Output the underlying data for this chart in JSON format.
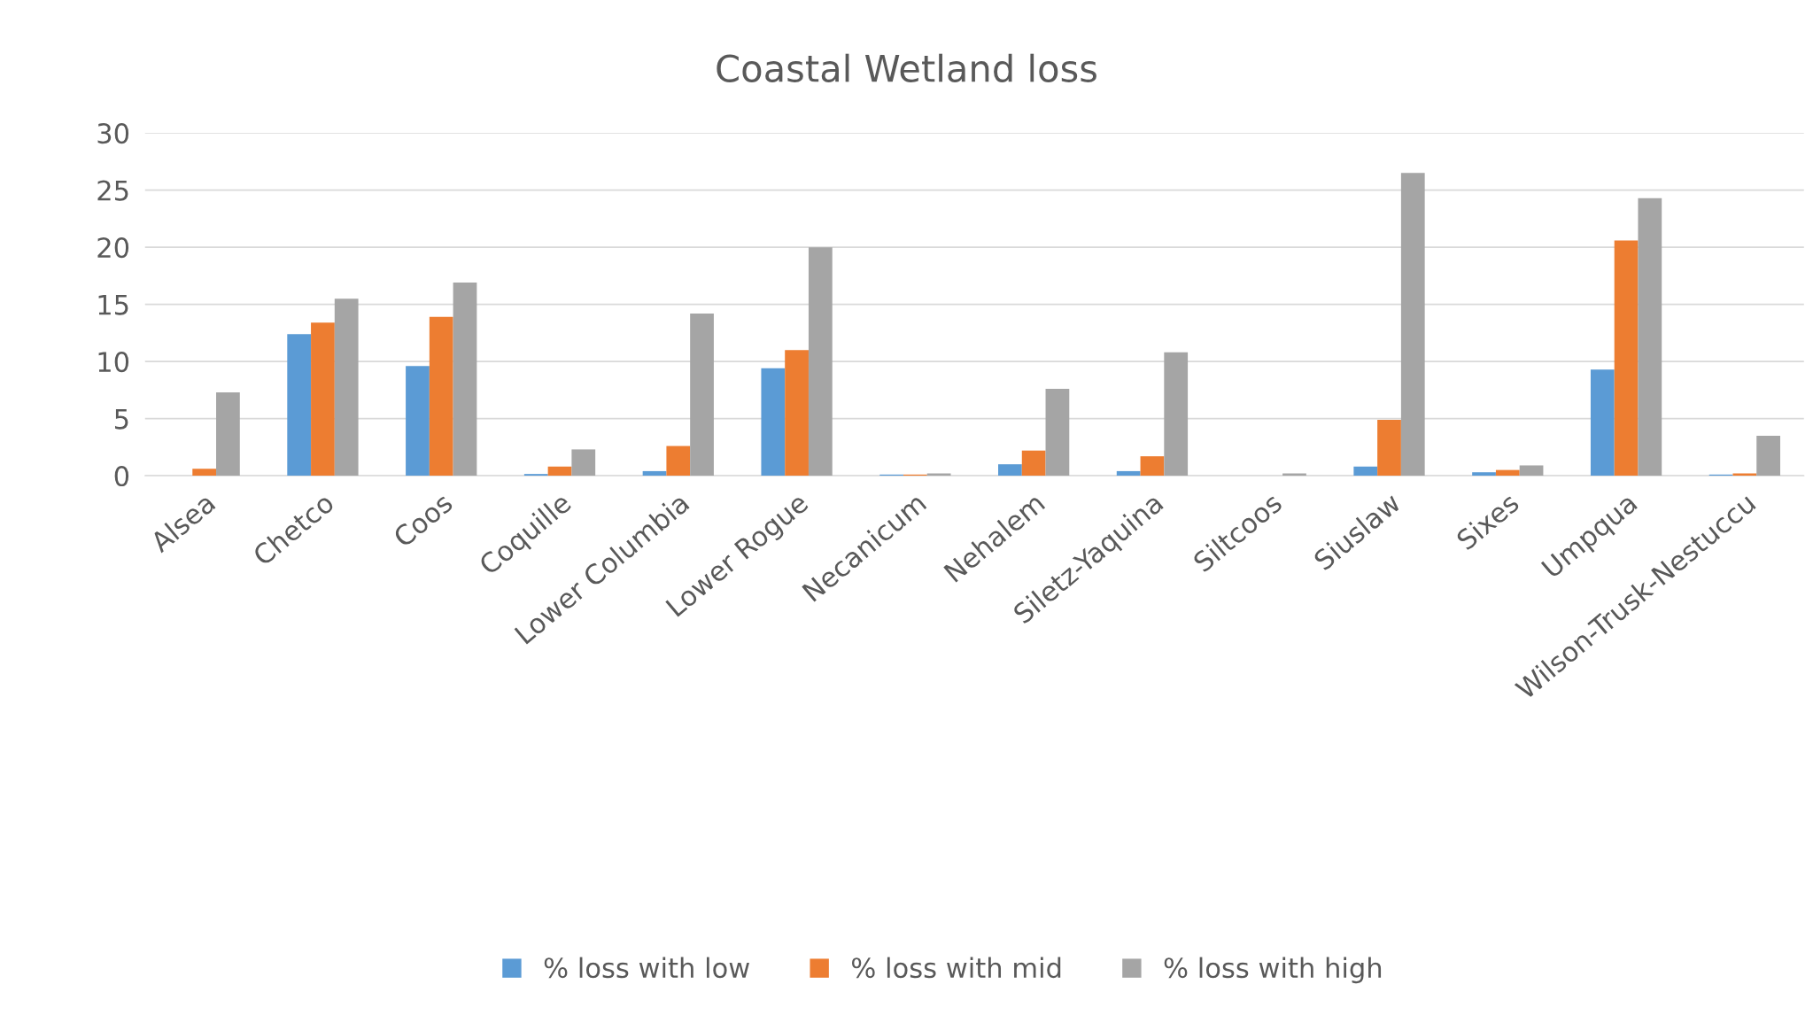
{
  "chart_data": {
    "type": "bar",
    "title": "Coastal Wetland loss",
    "categories": [
      "Alsea",
      "Chetco",
      "Coos",
      "Coquille",
      "Lower Columbia",
      "Lower Rogue",
      "Necanicum",
      "Nehalem",
      "Siletz-Yaquina",
      "Siltcoos",
      "Siuslaw",
      "Sixes",
      "Umpqua",
      "Wilson-Trusk-Nestuccu"
    ],
    "series": [
      {
        "name": "% loss with low",
        "color": "#5b9bd5",
        "values": [
          0,
          12.4,
          9.6,
          0.15,
          0.4,
          9.4,
          0.1,
          1.0,
          0.4,
          0,
          0.8,
          0.3,
          9.3,
          0.1
        ]
      },
      {
        "name": "% loss with mid",
        "color": "#ed7d31",
        "values": [
          0.6,
          13.4,
          13.9,
          0.8,
          2.6,
          11.0,
          0.1,
          2.2,
          1.7,
          0,
          4.9,
          0.5,
          20.6,
          0.2
        ]
      },
      {
        "name": "% loss with high",
        "color": "#a5a5a5",
        "values": [
          7.3,
          15.5,
          16.9,
          2.3,
          14.2,
          20.0,
          0.2,
          7.6,
          10.8,
          0.2,
          26.5,
          0.9,
          24.3,
          3.5
        ]
      }
    ],
    "ylim": [
      0,
      30
    ],
    "yticks": [
      0,
      5,
      10,
      15,
      20,
      25,
      30
    ],
    "grid": "y",
    "legend": "bottom"
  }
}
